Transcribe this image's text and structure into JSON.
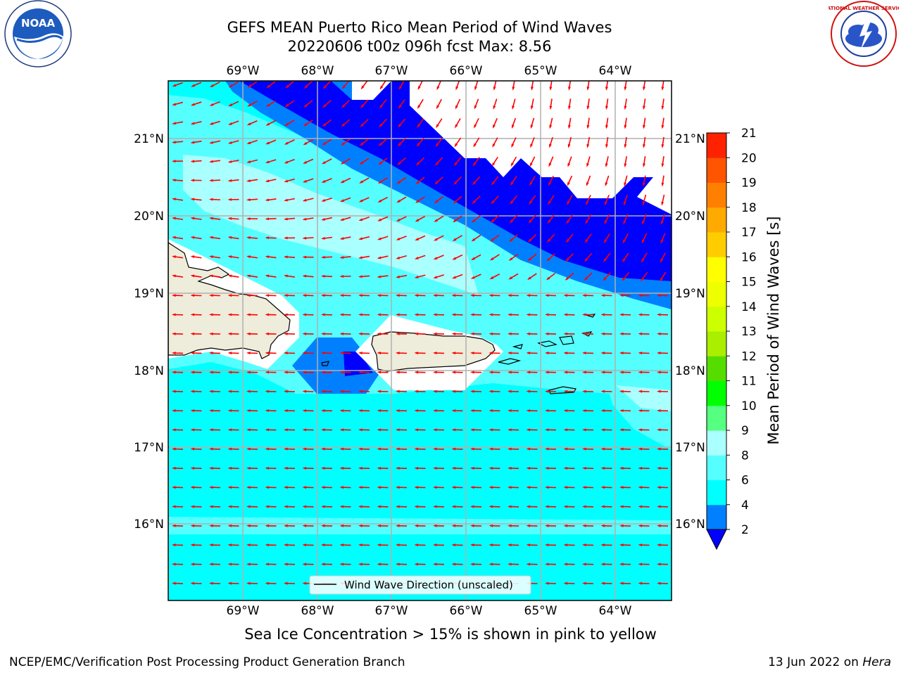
{
  "title": {
    "line1": "GEFS MEAN Puerto Rico Mean Period of Wind Waves",
    "line2": "20220606 t00z 096h fcst   Max: 8.56"
  },
  "map": {
    "lon_labels": [
      "69°W",
      "68°W",
      "67°W",
      "66°W",
      "65°W",
      "64°W"
    ],
    "lat_labels": [
      "21°N",
      "20°N",
      "19°N",
      "18°N",
      "17°N",
      "16°N"
    ],
    "legend_label": "Wind Wave Direction (unscaled)",
    "colors": {
      "ocean_light": "#00ffff",
      "ocean_mid": "#55ffff",
      "ocean_pale": "#aaffff",
      "blue_mid": "#0080ff",
      "blue_deep": "#0000ff",
      "land": "#eeecda",
      "arrow": "#ff0000",
      "grid": "#b0b0b0"
    }
  },
  "colorbar": {
    "label": "Mean Period of Wind Waves [s]",
    "ticks": [
      "2",
      "4",
      "6",
      "8",
      "9",
      "10",
      "11",
      "12",
      "13",
      "14",
      "15",
      "16",
      "17",
      "18",
      "19",
      "20",
      "21"
    ],
    "colors": [
      "#0000ff",
      "#0080ff",
      "#00ffff",
      "#55ffff",
      "#aaffff",
      "#55ff80",
      "#00ff00",
      "#55dd00",
      "#aaee00",
      "#ccff00",
      "#eeff00",
      "#ffff00",
      "#ffcc00",
      "#ffaa00",
      "#ff8000",
      "#ff5500",
      "#ff2200",
      "#ff0000"
    ]
  },
  "subtitle": "Sea Ice Concentration > 15% is shown in pink to yellow",
  "footer": {
    "left": "NCEP/EMC/Verification Post Processing Product Generation Branch",
    "right_prefix": "13 Jun 2022 on",
    "right_machine": "Hera"
  },
  "logos": {
    "noaa": "NOAA",
    "nws_ring": "NATIONAL WEATHER SERVICE"
  }
}
